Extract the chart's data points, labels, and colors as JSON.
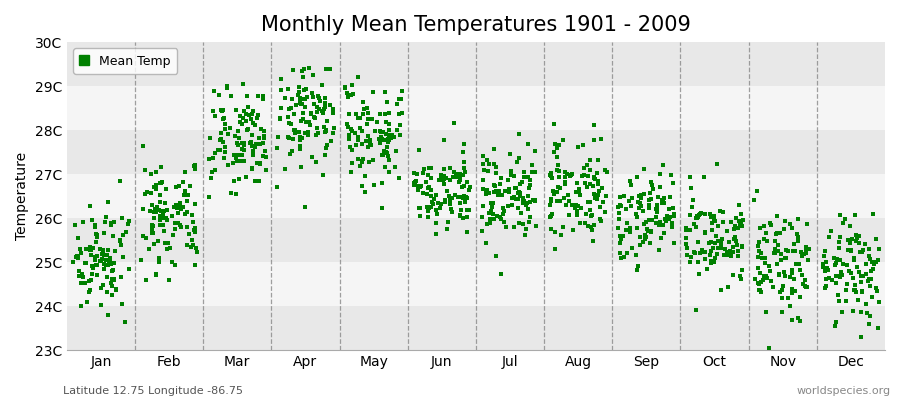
{
  "title": "Monthly Mean Temperatures 1901 - 2009",
  "ylabel": "Temperature",
  "subtitle": "Latitude 12.75 Longitude -86.75",
  "watermark": "worldspecies.org",
  "legend_label": "Mean Temp",
  "dot_color": "#008000",
  "bg_color": "#ffffff",
  "plot_bg_light": "#f0f0f0",
  "plot_bg_dark": "#e0e0e0",
  "months": [
    "Jan",
    "Feb",
    "Mar",
    "Apr",
    "May",
    "Jun",
    "Jul",
    "Aug",
    "Sep",
    "Oct",
    "Nov",
    "Dec"
  ],
  "month_means": [
    25.1,
    26.1,
    27.8,
    28.3,
    27.9,
    26.6,
    26.6,
    26.6,
    26.0,
    25.5,
    25.0,
    24.8
  ],
  "month_stds": [
    0.55,
    0.62,
    0.6,
    0.55,
    0.58,
    0.52,
    0.48,
    0.52,
    0.48,
    0.5,
    0.58,
    0.6
  ],
  "ylim_min": 23,
  "ylim_max": 30,
  "yticks": [
    23,
    24,
    25,
    26,
    27,
    28,
    29,
    30
  ],
  "ytick_labels": [
    "23C",
    "24C",
    "25C",
    "26C",
    "27C",
    "28C",
    "29C",
    "30C"
  ],
  "n_years": 109,
  "title_fontsize": 15,
  "axis_fontsize": 10,
  "tick_fontsize": 10,
  "dpi": 100
}
